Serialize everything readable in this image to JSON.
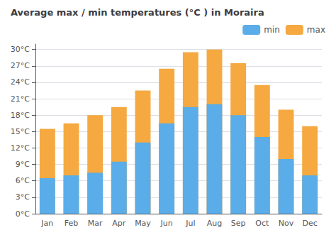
{
  "chart_data": {
    "type": "bar",
    "title": "Average max / min temperatures (°C ) in Moraira",
    "categories": [
      "Jan",
      "Feb",
      "Mar",
      "Apr",
      "May",
      "Jun",
      "Jul",
      "Aug",
      "Sep",
      "Oct",
      "Nov",
      "Dec"
    ],
    "series": [
      {
        "name": "min",
        "color": "#5aade8",
        "values": [
          6.5,
          7.0,
          7.5,
          9.5,
          13.0,
          16.5,
          19.5,
          20.0,
          18.0,
          14.0,
          10.0,
          7.0
        ]
      },
      {
        "name": "max",
        "color": "#f5a940",
        "values": [
          15.5,
          16.5,
          18.0,
          19.5,
          22.5,
          26.5,
          29.5,
          30.0,
          27.5,
          23.5,
          19.0,
          16.0
        ]
      }
    ],
    "ylim": [
      0,
      31
    ],
    "yticks": [
      {
        "value": 0,
        "label": "0°C"
      },
      {
        "value": 3,
        "label": "3°C"
      },
      {
        "value": 6,
        "label": "6°C"
      },
      {
        "value": 9,
        "label": "9°C"
      },
      {
        "value": 12,
        "label": "12°C"
      },
      {
        "value": 15,
        "label": "15°C"
      },
      {
        "value": 18,
        "label": "18°C"
      },
      {
        "value": 21,
        "label": "21°C"
      },
      {
        "value": 24,
        "label": "24°C"
      },
      {
        "value": 27,
        "label": "27°C"
      },
      {
        "value": 30,
        "label": "30°C"
      }
    ],
    "grid": true,
    "legend": "upper right"
  }
}
